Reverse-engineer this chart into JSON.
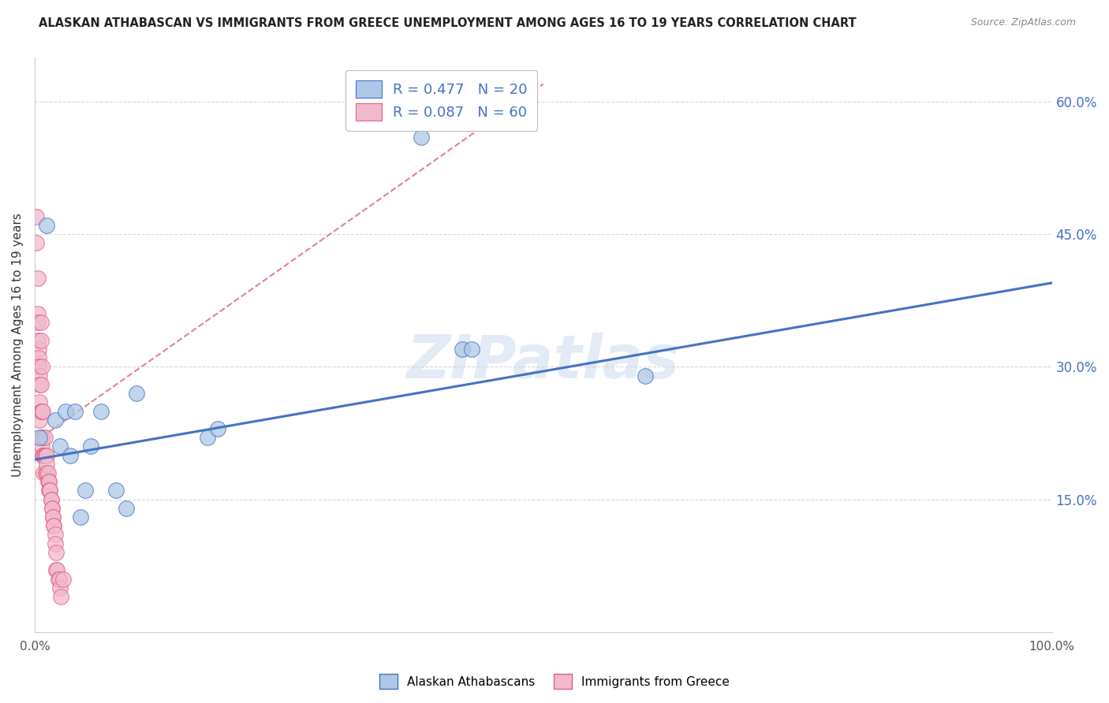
{
  "title": "ALASKAN ATHABASCAN VS IMMIGRANTS FROM GREECE UNEMPLOYMENT AMONG AGES 16 TO 19 YEARS CORRELATION CHART",
  "source": "Source: ZipAtlas.com",
  "ylabel": "Unemployment Among Ages 16 to 19 years",
  "xlabel": "",
  "xlim": [
    0,
    1.0
  ],
  "ylim": [
    0,
    0.65
  ],
  "xticks": [
    0.0,
    0.2,
    0.4,
    0.6,
    0.8,
    1.0
  ],
  "xticklabels": [
    "0.0%",
    "",
    "",
    "",
    "",
    "100.0%"
  ],
  "yticks_right": [
    0.0,
    0.15,
    0.3,
    0.45,
    0.6
  ],
  "yticklabels_right": [
    "",
    "15.0%",
    "30.0%",
    "45.0%",
    "60.0%"
  ],
  "watermark": "ZIPatlas",
  "blue_color": "#adc8e8",
  "pink_color": "#f2b8cc",
  "blue_line_color": "#4472c4",
  "pink_line_color": "#e06080",
  "legend_R1": "R = 0.477",
  "legend_N1": "N = 20",
  "legend_R2": "R = 0.087",
  "legend_N2": "N = 60",
  "legend_color": "#4472c4",
  "blue_scatter_x": [
    0.005,
    0.012,
    0.02,
    0.025,
    0.03,
    0.035,
    0.04,
    0.045,
    0.05,
    0.055,
    0.065,
    0.08,
    0.09,
    0.1,
    0.17,
    0.18,
    0.42,
    0.43,
    0.6,
    0.38
  ],
  "blue_scatter_y": [
    0.22,
    0.46,
    0.24,
    0.21,
    0.25,
    0.2,
    0.25,
    0.13,
    0.16,
    0.21,
    0.25,
    0.16,
    0.14,
    0.27,
    0.22,
    0.23,
    0.32,
    0.32,
    0.29,
    0.56
  ],
  "pink_scatter_x": [
    0.002,
    0.002,
    0.003,
    0.003,
    0.003,
    0.003,
    0.004,
    0.004,
    0.004,
    0.004,
    0.005,
    0.005,
    0.005,
    0.005,
    0.006,
    0.006,
    0.006,
    0.006,
    0.007,
    0.007,
    0.007,
    0.007,
    0.008,
    0.008,
    0.008,
    0.009,
    0.009,
    0.009,
    0.01,
    0.01,
    0.011,
    0.011,
    0.012,
    0.012,
    0.012,
    0.013,
    0.013,
    0.014,
    0.014,
    0.014,
    0.015,
    0.015,
    0.016,
    0.016,
    0.017,
    0.017,
    0.018,
    0.018,
    0.019,
    0.019,
    0.02,
    0.02,
    0.021,
    0.021,
    0.022,
    0.023,
    0.024,
    0.025,
    0.026,
    0.028
  ],
  "pink_scatter_y": [
    0.47,
    0.44,
    0.4,
    0.36,
    0.35,
    0.33,
    0.32,
    0.31,
    0.3,
    0.3,
    0.29,
    0.28,
    0.26,
    0.24,
    0.35,
    0.33,
    0.28,
    0.25,
    0.3,
    0.25,
    0.22,
    0.21,
    0.25,
    0.2,
    0.22,
    0.2,
    0.18,
    0.2,
    0.22,
    0.2,
    0.2,
    0.18,
    0.2,
    0.18,
    0.19,
    0.17,
    0.18,
    0.17,
    0.17,
    0.16,
    0.16,
    0.16,
    0.15,
    0.15,
    0.14,
    0.14,
    0.13,
    0.13,
    0.12,
    0.12,
    0.11,
    0.1,
    0.09,
    0.07,
    0.07,
    0.06,
    0.06,
    0.05,
    0.04,
    0.06
  ],
  "blue_trend_x": [
    0.0,
    1.0
  ],
  "blue_trend_y": [
    0.195,
    0.395
  ],
  "pink_trend_x": [
    0.0,
    0.5
  ],
  "pink_trend_y": [
    0.215,
    0.62
  ],
  "grid_color": "#d8d8d8",
  "background_color": "#ffffff"
}
